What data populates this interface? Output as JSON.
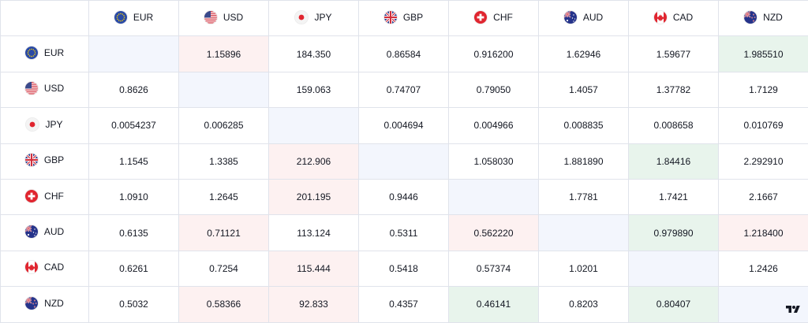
{
  "currencies": [
    {
      "code": "EUR",
      "flag": "eu-flag-icon"
    },
    {
      "code": "USD",
      "flag": "us-flag-icon"
    },
    {
      "code": "JPY",
      "flag": "jp-flag-icon"
    },
    {
      "code": "GBP",
      "flag": "gb-flag-icon"
    },
    {
      "code": "CHF",
      "flag": "ch-flag-icon"
    },
    {
      "code": "AUD",
      "flag": "au-flag-icon"
    },
    {
      "code": "CAD",
      "flag": "ca-flag-icon"
    },
    {
      "code": "NZD",
      "flag": "nz-flag-icon"
    }
  ],
  "rows": [
    {
      "values": [
        "",
        "1.15896",
        "184.350",
        "0.86584",
        "0.916200",
        "1.62946",
        "1.59677",
        "1.985510"
      ],
      "shade": [
        "self",
        "neg",
        "",
        "",
        "",
        "",
        "",
        "pos"
      ]
    },
    {
      "values": [
        "0.8626",
        "",
        "159.063",
        "0.74707",
        "0.79050",
        "1.4057",
        "1.37782",
        "1.7129"
      ],
      "shade": [
        "",
        "self",
        "",
        "",
        "",
        "",
        "",
        ""
      ]
    },
    {
      "values": [
        "0.0054237",
        "0.006285",
        "",
        "0.004694",
        "0.004966",
        "0.008835",
        "0.008658",
        "0.010769"
      ],
      "shade": [
        "",
        "",
        "self",
        "",
        "",
        "",
        "",
        ""
      ]
    },
    {
      "values": [
        "1.1545",
        "1.3385",
        "212.906",
        "",
        "1.058030",
        "1.881890",
        "1.84416",
        "2.292910"
      ],
      "shade": [
        "",
        "",
        "neg",
        "self",
        "",
        "",
        "pos",
        ""
      ]
    },
    {
      "values": [
        "1.0910",
        "1.2645",
        "201.195",
        "0.9446",
        "",
        "1.7781",
        "1.7421",
        "2.1667"
      ],
      "shade": [
        "",
        "",
        "neg",
        "",
        "self",
        "",
        "",
        ""
      ]
    },
    {
      "values": [
        "0.6135",
        "0.71121",
        "113.124",
        "0.5311",
        "0.562220",
        "",
        "0.979890",
        "1.218400"
      ],
      "shade": [
        "",
        "neg",
        "",
        "",
        "neg",
        "self",
        "pos",
        "neg"
      ]
    },
    {
      "values": [
        "0.6261",
        "0.7254",
        "115.444",
        "0.5418",
        "0.57374",
        "1.0201",
        "",
        "1.2426"
      ],
      "shade": [
        "",
        "",
        "neg",
        "",
        "",
        "",
        "self",
        ""
      ]
    },
    {
      "values": [
        "0.5032",
        "0.58366",
        "92.833",
        "0.4357",
        "0.46141",
        "0.8203",
        "0.80407",
        ""
      ],
      "shade": [
        "",
        "neg",
        "neg",
        "",
        "pos",
        "",
        "pos",
        "self"
      ]
    }
  ],
  "colors": {
    "self": "#f3f6fd",
    "neg": "#fdf1f1",
    "pos": "#e8f4ec",
    "border": "#e0e3eb"
  },
  "logo": "tradingview-logo-icon"
}
